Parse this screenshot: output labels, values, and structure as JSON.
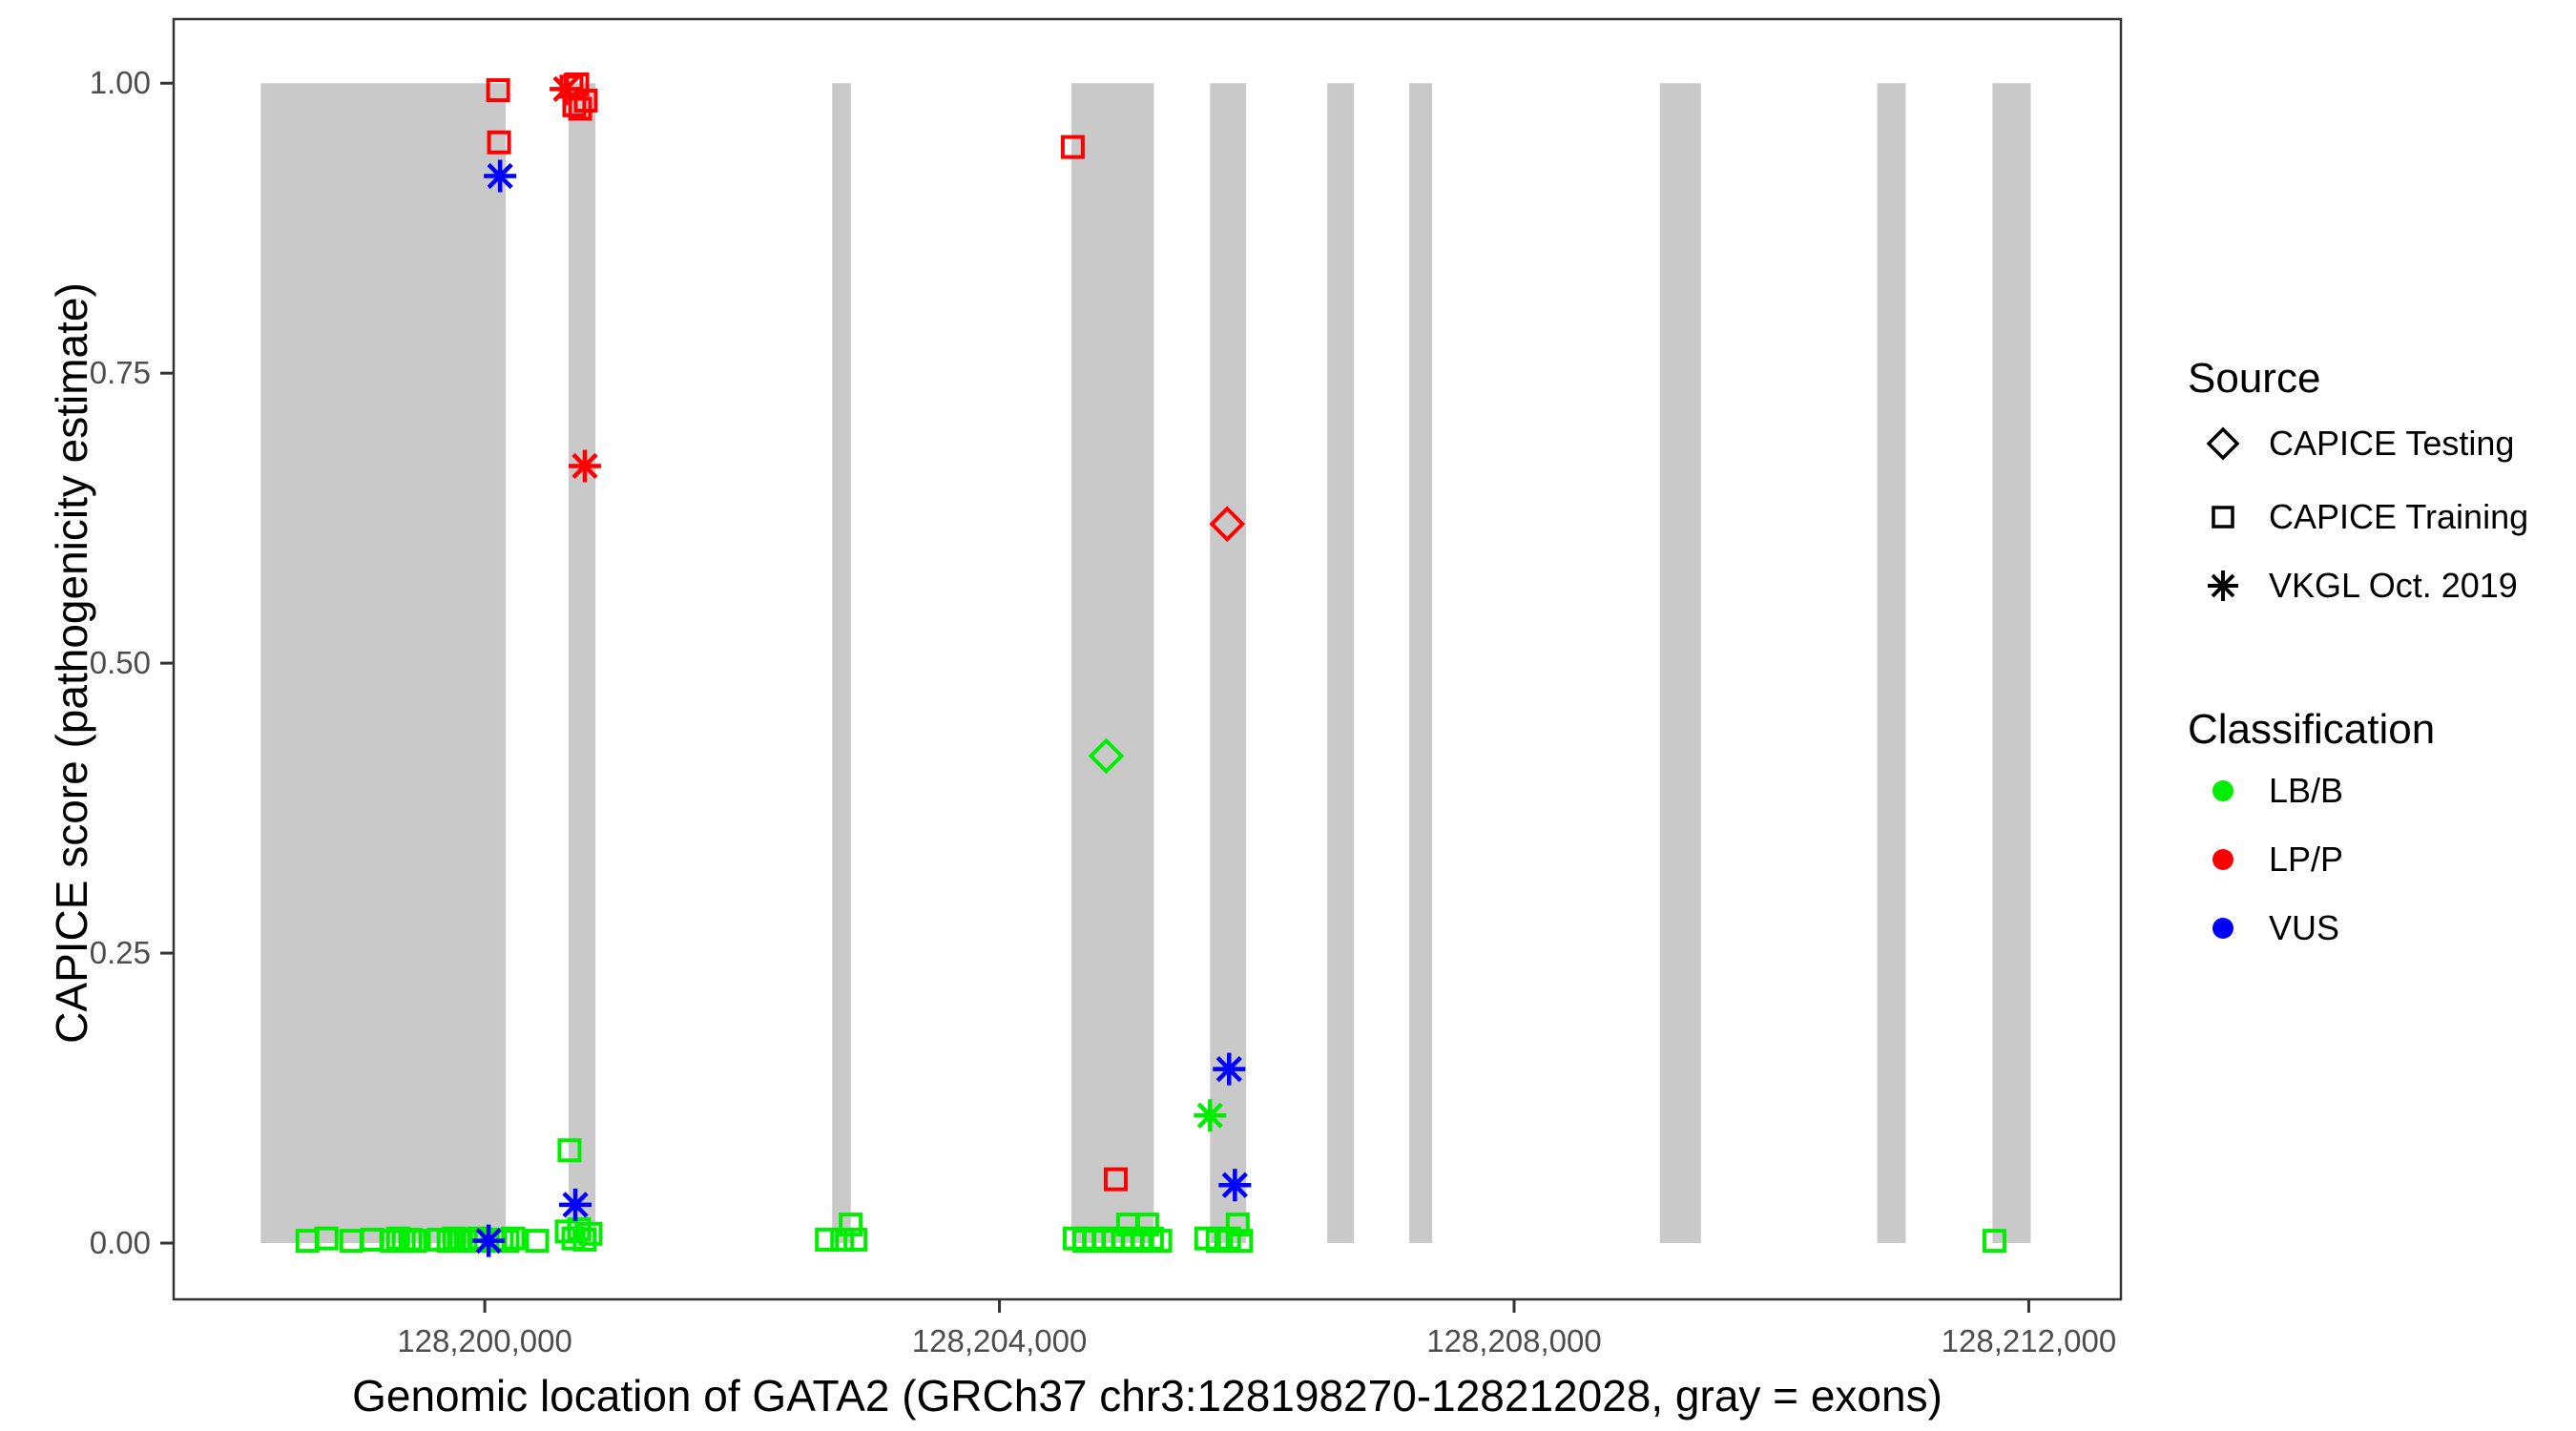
{
  "legend": {
    "source": {
      "title": "Source",
      "items": [
        {
          "label": "CAPICE Testing",
          "marker": "diamond"
        },
        {
          "label": "CAPICE Training",
          "marker": "square"
        },
        {
          "label": "VKGL Oct. 2019",
          "marker": "asterisk"
        }
      ]
    },
    "classification": {
      "title": "Classification",
      "items": [
        {
          "label": "LB/B",
          "color_key": "LB/B"
        },
        {
          "label": "LP/P",
          "color_key": "LP/P"
        },
        {
          "label": "VUS",
          "color_key": "VUS"
        }
      ]
    }
  },
  "chart_data": {
    "type": "scatter",
    "title": "",
    "xlabel": "Genomic location of GATA2 (GRCh37 chr3:128198270-128212028, gray = exons)",
    "ylabel": "CAPICE score (pathogenicity estimate)",
    "xlim": [
      128197582,
      128212716
    ],
    "ylim": [
      -0.0485,
      1.0553
    ],
    "grid": false,
    "legend_position": "right",
    "exon_color": "#C9C9C9",
    "tick_color": "#4D4D4D",
    "border_color": "#333333",
    "colors": {
      "LB/B": "#00EE00",
      "LP/P": "#FF0000",
      "VUS": "#0000FF"
    },
    "x_ticks": [
      {
        "value": 128200000,
        "label": "128,200,000"
      },
      {
        "value": 128204000,
        "label": "128,204,000"
      },
      {
        "value": 128208000,
        "label": "128,208,000"
      },
      {
        "value": 128212000,
        "label": "128,212,000"
      }
    ],
    "y_ticks": [
      {
        "value": 0.0,
        "label": "0.00"
      },
      {
        "value": 0.25,
        "label": "0.25"
      },
      {
        "value": 0.5,
        "label": "0.50"
      },
      {
        "value": 0.75,
        "label": "0.75"
      },
      {
        "value": 1.0,
        "label": "1.00"
      }
    ],
    "exons": [
      [
        128198259,
        128200163
      ],
      [
        128200652,
        128200860
      ],
      [
        128202700,
        128202845
      ],
      [
        128204560,
        128205200
      ],
      [
        128205637,
        128205918
      ],
      [
        128206548,
        128206756
      ],
      [
        128207185,
        128207363
      ],
      [
        128209133,
        128209452
      ],
      [
        128210822,
        128211044
      ],
      [
        128211718,
        128212015
      ]
    ],
    "series": [
      {
        "name": "CAPICE Training",
        "marker": "square",
        "points": [
          {
            "x": 128200104,
            "y": 0.994,
            "c": "LP/P"
          },
          {
            "x": 128200111,
            "y": 0.949,
            "c": "LP/P"
          },
          {
            "x": 128200674,
            "y": 0.997,
            "c": "LP/P"
          },
          {
            "x": 128200719,
            "y": 0.999,
            "c": "LP/P"
          },
          {
            "x": 128200696,
            "y": 0.981,
            "c": "LP/P"
          },
          {
            "x": 128200741,
            "y": 0.978,
            "c": "LP/P"
          },
          {
            "x": 128200785,
            "y": 0.985,
            "c": "LP/P"
          },
          {
            "x": 128204570,
            "y": 0.945,
            "c": "LP/P"
          },
          {
            "x": 128204904,
            "y": 0.055,
            "c": "LP/P"
          },
          {
            "x": 128198622,
            "y": 0.002,
            "c": "LB/B"
          },
          {
            "x": 128198770,
            "y": 0.004,
            "c": "LB/B"
          },
          {
            "x": 128198963,
            "y": 0.002,
            "c": "LB/B"
          },
          {
            "x": 128199126,
            "y": 0.003,
            "c": "LB/B"
          },
          {
            "x": 128199274,
            "y": 0.002,
            "c": "LB/B"
          },
          {
            "x": 128199326,
            "y": 0.004,
            "c": "LB/B"
          },
          {
            "x": 128199370,
            "y": 0.002,
            "c": "LB/B"
          },
          {
            "x": 128199422,
            "y": 0.003,
            "c": "LB/B"
          },
          {
            "x": 128199459,
            "y": 0.002,
            "c": "LB/B"
          },
          {
            "x": 128199644,
            "y": 0.003,
            "c": "LB/B"
          },
          {
            "x": 128199719,
            "y": 0.002,
            "c": "LB/B"
          },
          {
            "x": 128199763,
            "y": 0.004,
            "c": "LB/B"
          },
          {
            "x": 128199815,
            "y": 0.002,
            "c": "LB/B"
          },
          {
            "x": 128199852,
            "y": 0.003,
            "c": "LB/B"
          },
          {
            "x": 128199904,
            "y": 0.002,
            "c": "LB/B"
          },
          {
            "x": 128199956,
            "y": 0.004,
            "c": "LB/B"
          },
          {
            "x": 128200081,
            "y": 0.002,
            "c": "LB/B"
          },
          {
            "x": 128200133,
            "y": 0.003,
            "c": "LB/B"
          },
          {
            "x": 128200178,
            "y": 0.002,
            "c": "LB/B"
          },
          {
            "x": 128200222,
            "y": 0.004,
            "c": "LB/B"
          },
          {
            "x": 128200407,
            "y": 0.002,
            "c": "LB/B"
          },
          {
            "x": 128200637,
            "y": 0.01,
            "c": "LB/B"
          },
          {
            "x": 128200689,
            "y": 0.004,
            "c": "LB/B"
          },
          {
            "x": 128200733,
            "y": 0.012,
            "c": "LB/B"
          },
          {
            "x": 128200777,
            "y": 0.003,
            "c": "LB/B"
          },
          {
            "x": 128200822,
            "y": 0.008,
            "c": "LB/B"
          },
          {
            "x": 128200659,
            "y": 0.08,
            "c": "LB/B"
          },
          {
            "x": 128202659,
            "y": 0.003,
            "c": "LB/B"
          },
          {
            "x": 128202778,
            "y": 0.003,
            "c": "LB/B"
          },
          {
            "x": 128202844,
            "y": 0.016,
            "c": "LB/B"
          },
          {
            "x": 128202881,
            "y": 0.003,
            "c": "LB/B"
          },
          {
            "x": 128204585,
            "y": 0.004,
            "c": "LB/B"
          },
          {
            "x": 128204660,
            "y": 0.002,
            "c": "LB/B"
          },
          {
            "x": 128204735,
            "y": 0.004,
            "c": "LB/B"
          },
          {
            "x": 128204810,
            "y": 0.002,
            "c": "LB/B"
          },
          {
            "x": 128204885,
            "y": 0.004,
            "c": "LB/B"
          },
          {
            "x": 128204960,
            "y": 0.002,
            "c": "LB/B"
          },
          {
            "x": 128205000,
            "y": 0.016,
            "c": "LB/B"
          },
          {
            "x": 128205035,
            "y": 0.004,
            "c": "LB/B"
          },
          {
            "x": 128205110,
            "y": 0.002,
            "c": "LB/B"
          },
          {
            "x": 128205148,
            "y": 0.016,
            "c": "LB/B"
          },
          {
            "x": 128205185,
            "y": 0.004,
            "c": "LB/B"
          },
          {
            "x": 128205250,
            "y": 0.002,
            "c": "LB/B"
          },
          {
            "x": 128205607,
            "y": 0.004,
            "c": "LB/B"
          },
          {
            "x": 128205696,
            "y": 0.002,
            "c": "LB/B"
          },
          {
            "x": 128205785,
            "y": 0.004,
            "c": "LB/B"
          },
          {
            "x": 128205852,
            "y": 0.016,
            "c": "LB/B"
          },
          {
            "x": 128205878,
            "y": 0.002,
            "c": "LB/B"
          },
          {
            "x": 128211733,
            "y": 0.002,
            "c": "LB/B"
          }
        ]
      },
      {
        "name": "CAPICE Testing",
        "marker": "diamond",
        "points": [
          {
            "x": 128204830,
            "y": 0.42,
            "c": "LB/B"
          },
          {
            "x": 128205770,
            "y": 0.62,
            "c": "LP/P"
          }
        ]
      },
      {
        "name": "VKGL Oct. 2019",
        "marker": "asterisk",
        "points": [
          {
            "x": 128200119,
            "y": 0.92,
            "c": "VUS"
          },
          {
            "x": 128200630,
            "y": 0.995,
            "c": "LP/P"
          },
          {
            "x": 128200778,
            "y": 0.67,
            "c": "LP/P"
          },
          {
            "x": 128200704,
            "y": 0.033,
            "c": "VUS"
          },
          {
            "x": 128200030,
            "y": 0.002,
            "c": "VUS"
          },
          {
            "x": 128205785,
            "y": 0.15,
            "c": "VUS"
          },
          {
            "x": 128205637,
            "y": 0.11,
            "c": "LB/B"
          },
          {
            "x": 128205830,
            "y": 0.05,
            "c": "VUS"
          }
        ]
      }
    ]
  }
}
